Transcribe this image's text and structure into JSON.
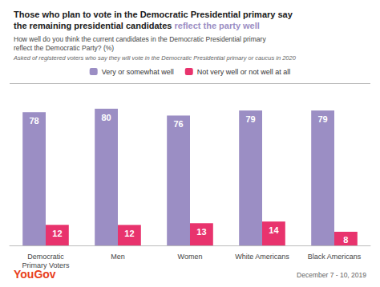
{
  "chart_data": {
    "type": "bar",
    "title": "Those who plan to vote in the Democratic Presidential primary say\nthe remaining presidential candidates reflect the party well",
    "title_highlight": "reflect the party well",
    "title_highlight_color": "#9b8ec4",
    "subtitle": "How well do you think the current candidates in the Democratic Presidential primary\nreflect the Democratic Party? (%)",
    "annotations": [
      {
        "text": "Asked of registered voters who say they will vote in the Democratic Presidential primary or caucus in 2020"
      },
      {
        "text": "YouGov",
        "color": "#e8401c"
      },
      {
        "text": "December 7 - 10, 2019"
      }
    ],
    "categories": [
      "Democratic\nPrimary Voters",
      "Men",
      "Women",
      "White Americans",
      "Black Americans"
    ],
    "series": [
      {
        "name": "Very or somewhat well",
        "color": "#9b8ec4",
        "values": [
          78,
          80,
          76,
          79,
          79
        ]
      },
      {
        "name": "Not very well or not well at all",
        "color": "#e8336d",
        "values": [
          12,
          12,
          13,
          14,
          8
        ]
      }
    ],
    "ylim": [
      0,
      95
    ],
    "tick_labels": "x",
    "grid": false,
    "legend": "top",
    "data_labels": true
  }
}
